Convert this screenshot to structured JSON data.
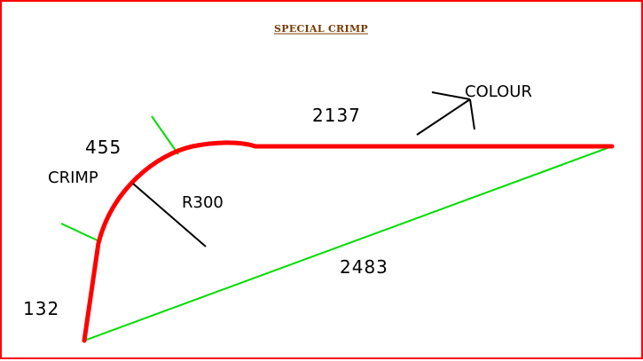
{
  "title": "SPECIAL CRIMP",
  "labels": {
    "colour": "COLOUR",
    "crimp": "CRIMP",
    "radius": "R300"
  },
  "dimensions": {
    "top_run": "2137",
    "arc_length": "455",
    "diagonal": "2483",
    "bottom_leg": "132"
  },
  "colors": {
    "border": "#ff0000",
    "profile": "#ff0000",
    "construction": "#00dd00",
    "annotation": "#000000",
    "title": "#7a3b00"
  }
}
